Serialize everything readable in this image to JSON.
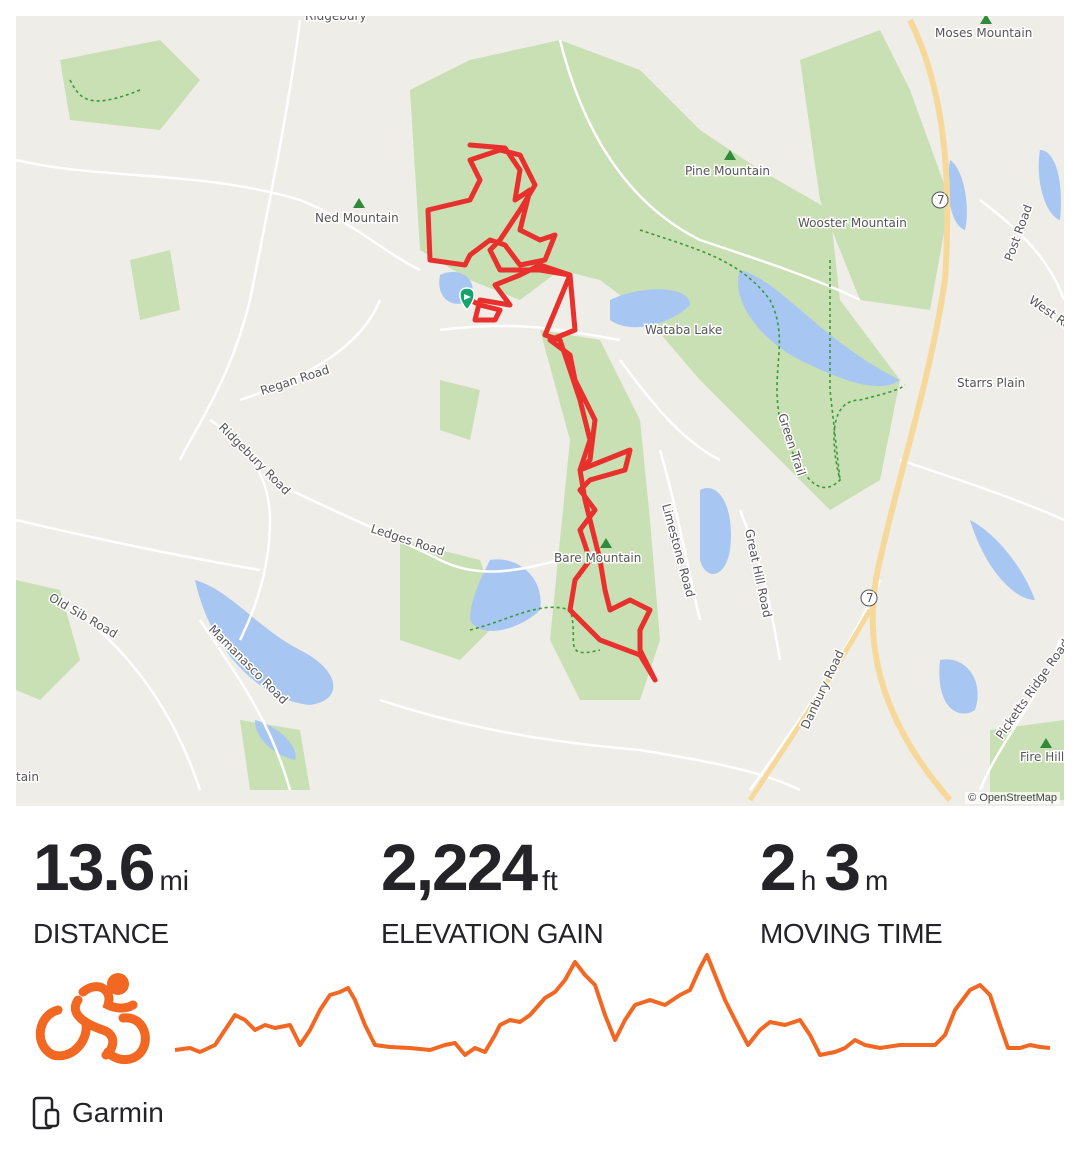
{
  "map": {
    "attribution": "© OpenStreetMap",
    "labels": [
      {
        "text": "Ridgebury"
      },
      {
        "text": "Moses Mountain"
      },
      {
        "text": "Pine Mountain"
      },
      {
        "text": "Ned Mountain"
      },
      {
        "text": "Wooster Mountain"
      },
      {
        "text": "Post Road"
      },
      {
        "text": "West Redd"
      },
      {
        "text": "Wataba Lake"
      },
      {
        "text": "Regan Road"
      },
      {
        "text": "Starrs Plain"
      },
      {
        "text": "Ridgebury Road"
      },
      {
        "text": "Green Trail"
      },
      {
        "text": "Ledges Road"
      },
      {
        "text": "Limestone Road"
      },
      {
        "text": "Great Hill Road"
      },
      {
        "text": "Bare Mountain"
      },
      {
        "text": "Old Sib Road"
      },
      {
        "text": "Mamanasco Road"
      },
      {
        "text": "Danbury Road"
      },
      {
        "text": "Picketts Ridge Road"
      },
      {
        "text": "Fire Hill"
      },
      {
        "text": "tain"
      },
      {
        "text": "7"
      },
      {
        "text": "7"
      }
    ],
    "route_color": "#e8302c",
    "start_marker_color": "#13a36b"
  },
  "stats": [
    {
      "value": "13.6",
      "unit": "mi",
      "label": "DISTANCE"
    },
    {
      "value": "2,224",
      "unit": "ft",
      "label": "ELEVATION GAIN"
    },
    {
      "value_h": "2",
      "unit_h": "h",
      "value_m": "3",
      "unit_m": "m",
      "label": "MOVING TIME"
    }
  ],
  "activity_type_icon": "cycling-icon",
  "accent_color": "#f26722",
  "device": {
    "icon": "watch-phone-icon",
    "name": "Garmin"
  }
}
